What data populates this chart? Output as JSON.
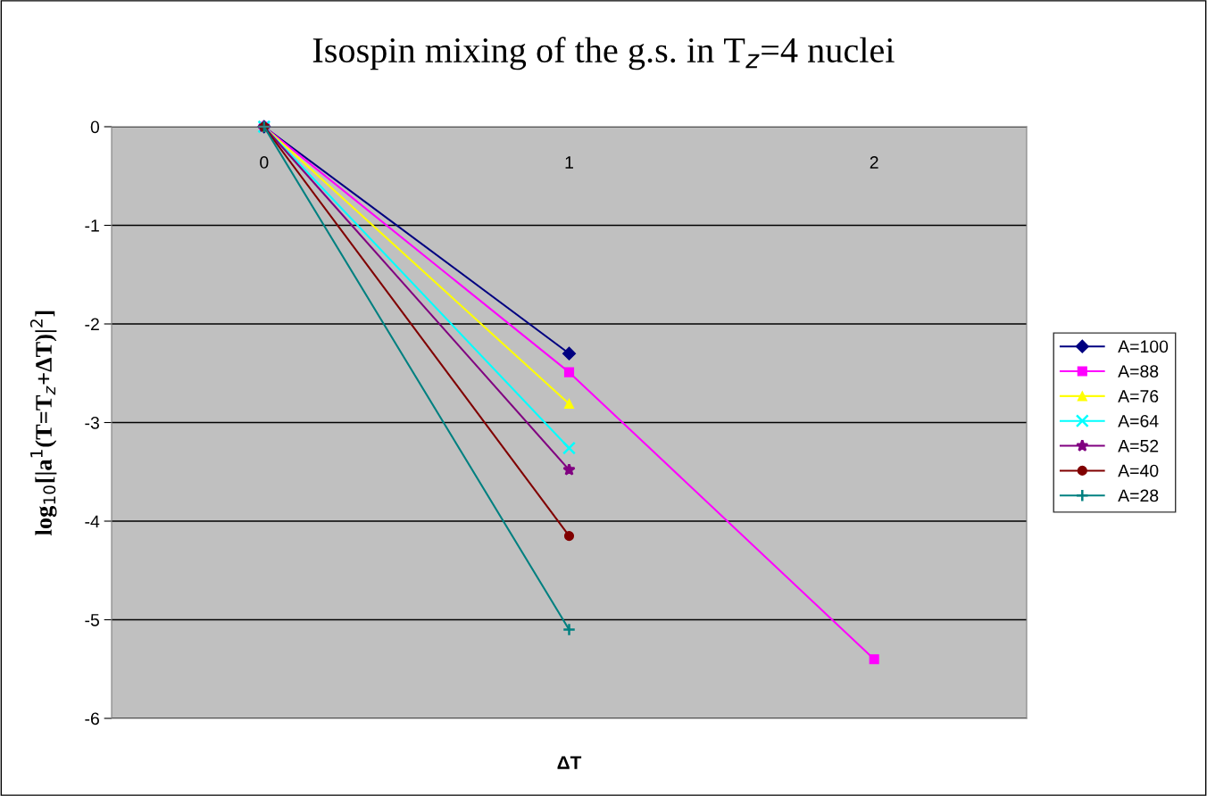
{
  "chart_data": {
    "type": "line",
    "title": "Isospin mixing of the g.s. in T$_{z}$=4 nuclei",
    "xlabel": "ΔT",
    "ylabel": "log$_{10}$[|a$^{1}$(T=T$_{z}$+ΔT)|$^{2}$]",
    "categories": [
      "0",
      "1",
      "2"
    ],
    "ylim": [
      -6,
      0
    ],
    "yticks": [
      -6,
      -5,
      -4,
      -3,
      -2,
      -1,
      0
    ],
    "grid": "y",
    "legend": "right",
    "series": [
      {
        "name": "A=100",
        "color": "#000080",
        "marker": "diamond",
        "values": [
          0,
          -2.3,
          null
        ]
      },
      {
        "name": "A=88",
        "color": "#ff00ff",
        "marker": "square",
        "values": [
          0,
          -2.49,
          -5.4
        ]
      },
      {
        "name": "A=76",
        "color": "#ffff00",
        "marker": "triangle",
        "values": [
          0,
          -2.81,
          null
        ]
      },
      {
        "name": "A=64",
        "color": "#00ffff",
        "marker": "x",
        "values": [
          0,
          -3.26,
          null
        ]
      },
      {
        "name": "A=52",
        "color": "#800080",
        "marker": "star",
        "values": [
          0,
          -3.48,
          null
        ]
      },
      {
        "name": "A=40",
        "color": "#800000",
        "marker": "circle",
        "values": [
          0,
          -4.15,
          null
        ]
      },
      {
        "name": "A=28",
        "color": "#008080",
        "marker": "cross",
        "values": [
          0,
          -5.1,
          null
        ]
      }
    ]
  }
}
